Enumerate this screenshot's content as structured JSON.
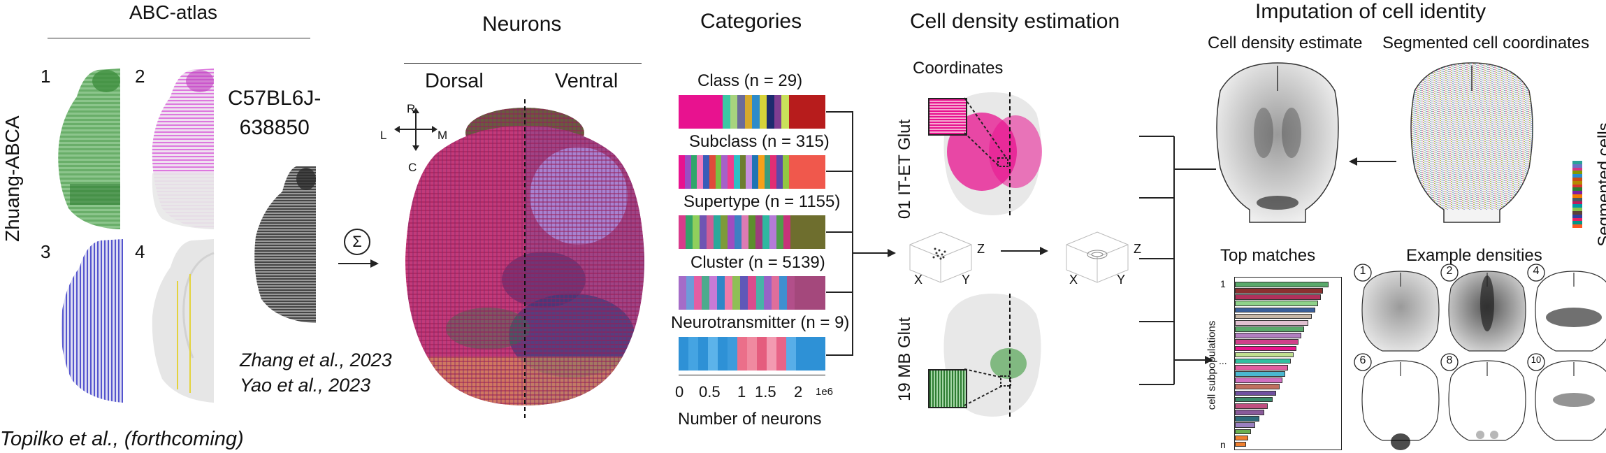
{
  "abc": {
    "title": "ABC-atlas",
    "side_label": "Zhuang-ABCA",
    "panel_nums": [
      "1",
      "2",
      "3",
      "4"
    ],
    "specimen": "C57BL6J-\n638850",
    "citation1": "Zhang et al., 2023",
    "citation2": "Yao et al., 2023",
    "sum_symbol": "Σ"
  },
  "footer_citation": "Topilko et al., (forthcoming)",
  "neurons": {
    "title": "Neurons",
    "dorsal": "Dorsal",
    "ventral": "Ventral",
    "compass": {
      "r": "R",
      "l": "L",
      "m": "M",
      "c": "C"
    }
  },
  "categories": {
    "title": "Categories",
    "rows": [
      {
        "label": "Class (n = 29)",
        "colors": [
          "#e8128f",
          "#e8128f",
          "#e8128f",
          "#e8128f",
          "#e8128f",
          "#e8128f",
          "#3cc7a4",
          "#a7d37e",
          "#6b6b99",
          "#d6a92c",
          "#2e8bc9",
          "#d6d23a",
          "#1d2b6e",
          "#7f3d91",
          "#c9e05a",
          "#b71c1c",
          "#b71c1c",
          "#b71c1c",
          "#b71c1c",
          "#b71c1c"
        ]
      },
      {
        "label": "Subclass (n = 315)",
        "colors": [
          "#e8128f",
          "#9a4dc4",
          "#2fa66b",
          "#f07dbd",
          "#3a5bb8",
          "#e04a3a",
          "#7ac043",
          "#a660c9",
          "#ef3d8e",
          "#2ec0c5",
          "#6d7d2f",
          "#c68de0",
          "#1f73b4",
          "#f6a01a",
          "#3b9c7e",
          "#e22e74",
          "#5b4aa9",
          "#93c742",
          "#f0584c",
          "#f0584c",
          "#f0584c",
          "#f0584c",
          "#f0584c",
          "#f0584c"
        ]
      },
      {
        "label": "Supertype (n = 1155)",
        "colors": [
          "#d83b8b",
          "#33a46a",
          "#8fcf5c",
          "#6f55b3",
          "#cf5e96",
          "#2ba99b",
          "#7d9b3a",
          "#a04cc0",
          "#3f7fc2",
          "#dd7bb3",
          "#5c8e2d",
          "#9d3c7d",
          "#2fb8a0",
          "#b57bd8",
          "#4f9d4a",
          "#c6337a",
          "#6e6e2e",
          "#6e6e2e",
          "#6e6e2e",
          "#6e6e2e",
          "#6e6e2e"
        ]
      },
      {
        "label": "Cluster (n = 5139)",
        "colors": [
          "#a56cc8",
          "#6e9bd9",
          "#e45da3",
          "#4daa8d",
          "#c77ad6",
          "#2f86c7",
          "#ee7aa8",
          "#8fbf55",
          "#5f58b8",
          "#d94c8d",
          "#47b3a7",
          "#9762c7",
          "#df6e9b",
          "#3f8fd0",
          "#b24f8a",
          "#a4487c",
          "#a4487c",
          "#a4487c",
          "#a4487c"
        ]
      },
      {
        "label": "Neurotransmitter (n = 9)",
        "colors": [
          "#2e91d6",
          "#45a4e2",
          "#2e91d6",
          "#5cb3ea",
          "#2e91d6",
          "#3d9bdc",
          "#eb6f8a",
          "#f08aa0",
          "#e55d7e",
          "#f39ab1",
          "#e86487",
          "#58aee8",
          "#2e91d6",
          "#2e91d6",
          "#2e91d6"
        ]
      }
    ],
    "axis_ticks": [
      "0",
      "0.5",
      "1",
      "1.5",
      "2"
    ],
    "axis_exponent": "1e6",
    "axis_label": "Number of neurons"
  },
  "density": {
    "title": "Cell density estimation",
    "coords_label": "Coordinates",
    "label_top": "01 IT-ET Glut",
    "label_bottom": "19 MB Glut",
    "axes": {
      "z": "Z",
      "x": "X",
      "y": "Y"
    }
  },
  "imputation": {
    "title": "Imputation of cell identity",
    "estimate_label": "Cell density estimate",
    "segmented_label": "Segmented cell coordinates",
    "segmented_side": "Segmented cells",
    "seg_colors": [
      "#2aa198",
      "#6c71c4",
      "#d33682",
      "#859900",
      "#268bd2",
      "#cb4b16",
      "#b58900",
      "#dc322f",
      "#2e7d32",
      "#7b1fa2",
      "#f57c00",
      "#455a64",
      "#c2185b",
      "#0097a7",
      "#8bc34a",
      "#5d4037",
      "#303f9f",
      "#e91e63",
      "#009688",
      "#ff5722"
    ],
    "top_matches": "Top matches",
    "example_densities": "Example densities",
    "cell_subpop": "cell subpopulations",
    "rank_first": "1",
    "rank_dots": "...",
    "rank_last": "n",
    "match_bar_values": [
      1.0,
      0.94,
      0.92,
      0.89,
      0.86,
      0.82,
      0.78,
      0.74,
      0.71,
      0.68,
      0.66,
      0.63,
      0.6,
      0.57,
      0.54,
      0.51,
      0.48,
      0.44,
      0.4,
      0.35,
      0.31,
      0.26,
      0.22,
      0.17,
      0.14,
      0.12
    ],
    "match_bar_colors": [
      "#5aa96b",
      "#8b2f2f",
      "#b0305a",
      "#8fd28a",
      "#3a5f9a",
      "#c8b8a8",
      "#e0c0d0",
      "#5aa96b",
      "#b27fc0",
      "#d0408a",
      "#e8168a",
      "#c0e090",
      "#30c0a0",
      "#e060a0",
      "#4ab8d0",
      "#d070c0",
      "#c07060",
      "#7050a0",
      "#3a8a6a",
      "#c05080",
      "#8a5a9a",
      "#2e6a7a",
      "#9a80c0",
      "#6ab050",
      "#f08030",
      "#f08030"
    ],
    "example_ids": [
      "1",
      "2",
      "4",
      "6",
      "8",
      "10"
    ]
  }
}
